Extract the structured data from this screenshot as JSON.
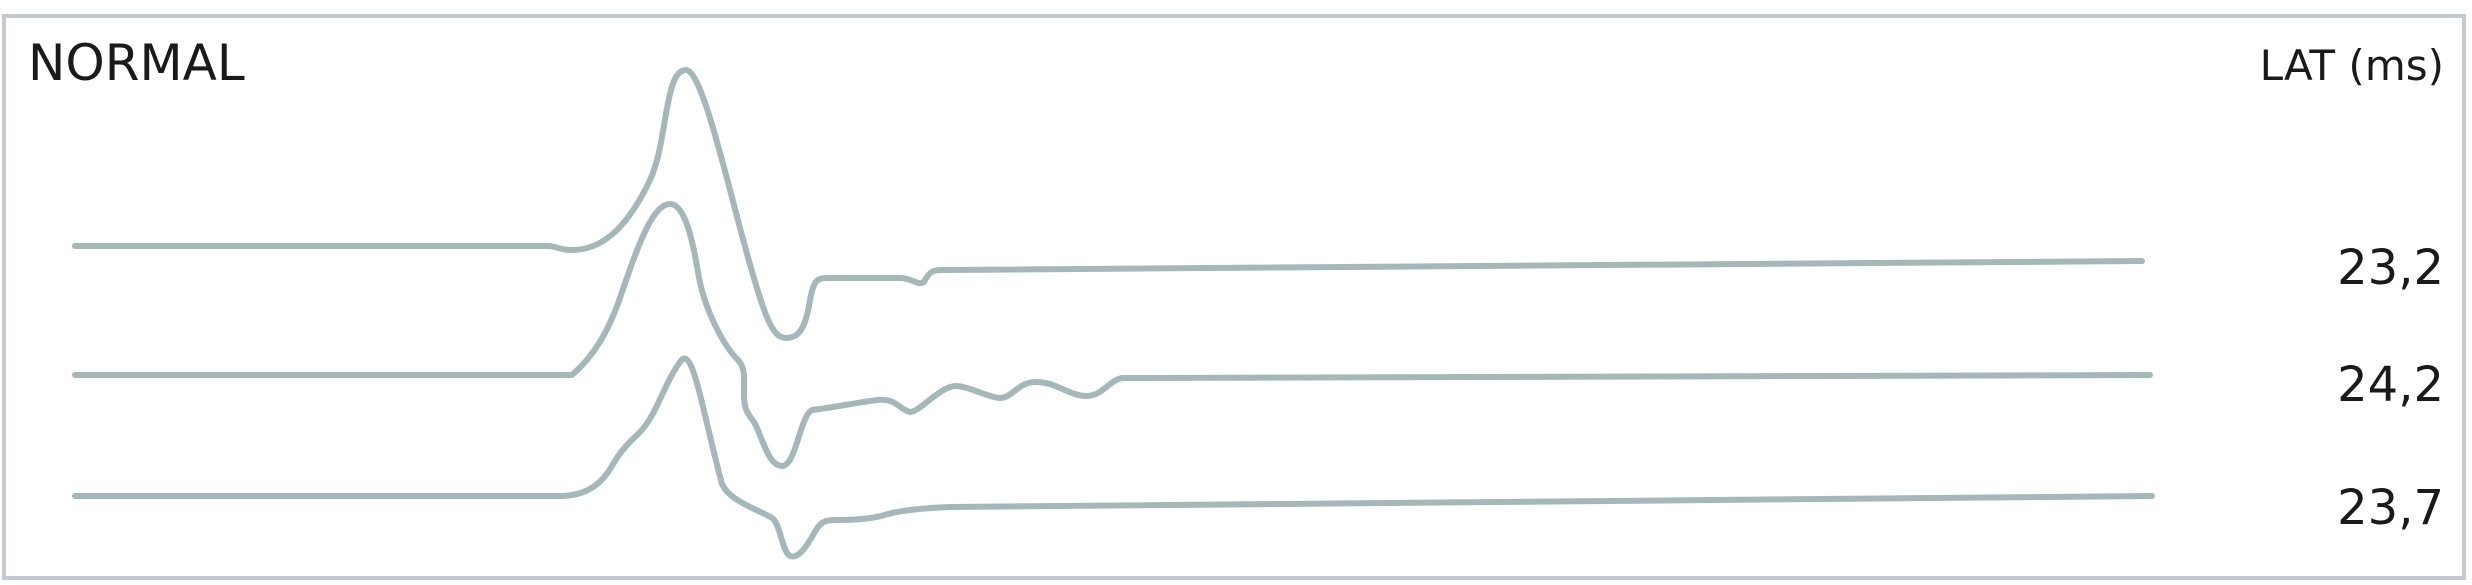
{
  "title": "NORMAL",
  "lat_header": "LAT (ms)",
  "colors": {
    "trace": "#a6b7b9",
    "frame": "#c4c8d0",
    "text": "#1a1a1a"
  },
  "chart_data": {
    "type": "line",
    "title": "NORMAL",
    "legend_header": "LAT (ms)",
    "series": [
      {
        "name": "23,2",
        "latency_ms": 23.2
      },
      {
        "name": "24,2",
        "latency_ms": 24.2
      },
      {
        "name": "23,7",
        "latency_ms": 23.7
      }
    ],
    "grid": false,
    "axes_visible": false
  }
}
